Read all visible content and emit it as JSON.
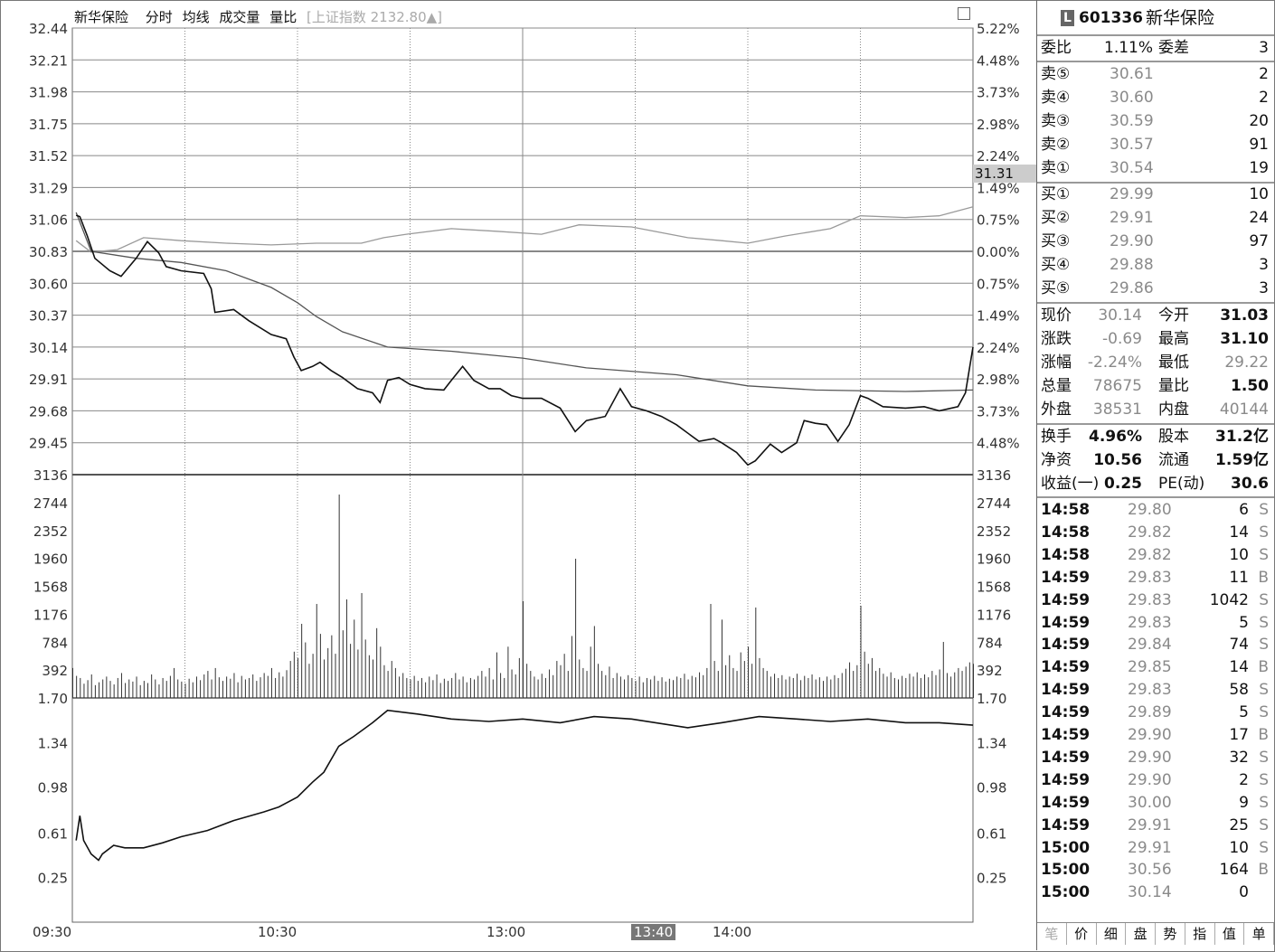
{
  "header": {
    "stock_name": "新华保险",
    "tabs": [
      "分时",
      "均线",
      "成交量",
      "量比"
    ],
    "index_info": "[上证指数 2132.80▲]"
  },
  "cursor": {
    "price": "31.31",
    "time": "13:40"
  },
  "time_labels": [
    "09:30",
    "10:30",
    "13:00",
    "14:00"
  ],
  "quote": {
    "code_badge": "L",
    "code": "601336",
    "name": "新华保险",
    "weibi_label": "委比",
    "weibi": "1.11%",
    "weicha_label": "委差",
    "weicha": "3",
    "sells": [
      {
        "label": "卖⑤",
        "price": "30.61",
        "vol": "2"
      },
      {
        "label": "卖④",
        "price": "30.60",
        "vol": "2"
      },
      {
        "label": "卖③",
        "price": "30.59",
        "vol": "20"
      },
      {
        "label": "卖②",
        "price": "30.57",
        "vol": "91"
      },
      {
        "label": "卖①",
        "price": "30.54",
        "vol": "19"
      }
    ],
    "buys": [
      {
        "label": "买①",
        "price": "29.99",
        "vol": "10"
      },
      {
        "label": "买②",
        "price": "29.91",
        "vol": "24"
      },
      {
        "label": "买③",
        "price": "29.90",
        "vol": "97"
      },
      {
        "label": "买④",
        "price": "29.88",
        "vol": "3"
      },
      {
        "label": "买⑤",
        "price": "29.86",
        "vol": "3"
      }
    ],
    "stats": [
      {
        "l1": "现价",
        "v1": "30.14",
        "l2": "今开",
        "v2": "31.03",
        "c1": "g",
        "c2": "b"
      },
      {
        "l1": "涨跌",
        "v1": "-0.69",
        "l2": "最高",
        "v2": "31.10",
        "c1": "g",
        "c2": "b"
      },
      {
        "l1": "涨幅",
        "v1": "-2.24%",
        "l2": "最低",
        "v2": "29.22",
        "c1": "g",
        "c2": "g"
      },
      {
        "l1": "总量",
        "v1": "78675",
        "l2": "量比",
        "v2": "1.50",
        "c1": "g",
        "c2": "b"
      },
      {
        "l1": "外盘",
        "v1": "38531",
        "l2": "内盘",
        "v2": "40144",
        "c1": "g",
        "c2": "g"
      }
    ],
    "fundamentals": [
      {
        "l1": "换手",
        "v1": "4.96%",
        "l2": "股本",
        "v2": "31.2亿"
      },
      {
        "l1": "净资",
        "v1": "10.56",
        "l2": "流通",
        "v2": "1.59亿"
      },
      {
        "l1": "收益(一)",
        "v1": "0.25",
        "l2": "PE(动)",
        "v2": "30.6"
      }
    ],
    "ticks": [
      [
        "14:58",
        "29.80",
        "6",
        "S"
      ],
      [
        "14:58",
        "29.82",
        "14",
        "S"
      ],
      [
        "14:58",
        "29.82",
        "10",
        "S"
      ],
      [
        "14:59",
        "29.83",
        "11",
        "B"
      ],
      [
        "14:59",
        "29.83",
        "1042",
        "S"
      ],
      [
        "14:59",
        "29.83",
        "5",
        "S"
      ],
      [
        "14:59",
        "29.84",
        "74",
        "S"
      ],
      [
        "14:59",
        "29.85",
        "14",
        "B"
      ],
      [
        "14:59",
        "29.83",
        "58",
        "S"
      ],
      [
        "14:59",
        "29.89",
        "5",
        "S"
      ],
      [
        "14:59",
        "29.90",
        "17",
        "B"
      ],
      [
        "14:59",
        "29.90",
        "32",
        "S"
      ],
      [
        "14:59",
        "29.90",
        "2",
        "S"
      ],
      [
        "14:59",
        "30.00",
        "9",
        "S"
      ],
      [
        "14:59",
        "29.91",
        "25",
        "S"
      ],
      [
        "15:00",
        "29.91",
        "10",
        "S"
      ],
      [
        "15:00",
        "30.56",
        "164",
        "B"
      ],
      [
        "15:00",
        "30.14",
        "0",
        ""
      ]
    ],
    "bottom_tabs": [
      "笔",
      "价",
      "细",
      "盘",
      "势",
      "指",
      "值",
      "单"
    ]
  },
  "chart_data": [
    {
      "type": "line",
      "panel": "price",
      "ylim": [
        29.22,
        32.44
      ],
      "prev_close": 30.83,
      "y_ticks": [
        "32.44",
        "32.21",
        "31.98",
        "31.75",
        "31.52",
        "31.29",
        "31.06",
        "30.83",
        "30.60",
        "30.37",
        "30.14",
        "29.91",
        "29.68",
        "29.45"
      ],
      "pct_ticks": [
        "5.22%",
        "4.48%",
        "3.73%",
        "2.98%",
        "2.24%",
        "1.49%",
        "0.75%",
        "0.00%",
        "0.75%",
        "1.49%",
        "2.24%",
        "2.98%",
        "3.73%",
        "4.48%"
      ],
      "x_unit": "minutes since 09:30 (trading minutes)",
      "xlim": [
        0,
        240
      ],
      "series": [
        {
          "key": "price",
          "x": [
            1,
            2,
            4,
            6,
            10,
            13,
            17,
            20,
            23,
            25,
            29,
            35,
            37,
            38,
            43,
            47,
            53,
            57,
            59,
            61,
            64,
            66,
            69,
            72,
            76,
            80,
            82,
            84,
            87,
            90,
            94,
            99,
            101,
            104,
            107,
            111,
            114,
            117,
            120,
            125,
            130,
            134,
            137,
            142,
            146,
            149,
            153,
            157,
            161,
            167,
            171,
            173,
            177,
            180,
            182,
            186,
            189,
            193,
            195,
            198,
            201,
            204,
            207,
            210,
            212,
            216,
            222,
            227,
            231,
            236,
            238,
            240
          ],
          "y": [
            31.09,
            31.08,
            30.94,
            30.78,
            30.69,
            30.65,
            30.78,
            30.9,
            30.82,
            30.72,
            30.69,
            30.67,
            30.56,
            30.39,
            30.41,
            30.33,
            30.23,
            30.2,
            30.07,
            29.97,
            30.0,
            30.03,
            29.97,
            29.92,
            29.84,
            29.81,
            29.74,
            29.9,
            29.92,
            29.87,
            29.84,
            29.83,
            29.9,
            30.0,
            29.9,
            29.84,
            29.84,
            29.79,
            29.77,
            29.77,
            29.7,
            29.53,
            29.61,
            29.64,
            29.84,
            29.71,
            29.68,
            29.64,
            29.58,
            29.46,
            29.48,
            29.45,
            29.38,
            29.29,
            29.32,
            29.44,
            29.38,
            29.45,
            29.61,
            29.59,
            29.58,
            29.46,
            29.58,
            29.79,
            29.77,
            29.71,
            29.7,
            29.71,
            29.68,
            29.71,
            29.81,
            30.14
          ]
        },
        {
          "key": "average",
          "x": [
            1,
            5,
            17,
            29,
            41,
            53,
            60,
            65,
            72,
            84,
            101,
            120,
            137,
            161,
            180,
            198,
            222,
            240
          ],
          "y": [
            31.11,
            30.83,
            30.78,
            30.75,
            30.69,
            30.57,
            30.46,
            30.36,
            30.25,
            30.14,
            30.11,
            30.06,
            29.99,
            29.94,
            29.86,
            29.83,
            29.82,
            29.83
          ]
        },
        {
          "key": "index_pct",
          "x": [
            1,
            5,
            12,
            19,
            29,
            41,
            53,
            65,
            77,
            83,
            89,
            101,
            113,
            125,
            135,
            149,
            164,
            173,
            180,
            190,
            202,
            210,
            222,
            231,
            240
          ],
          "y": [
            0.25,
            -0.02,
            0.04,
            0.32,
            0.25,
            0.19,
            0.15,
            0.19,
            0.19,
            0.32,
            0.4,
            0.53,
            0.47,
            0.4,
            0.62,
            0.57,
            0.32,
            0.25,
            0.19,
            0.36,
            0.53,
            0.83,
            0.79,
            0.83,
            1.04
          ]
        }
      ]
    },
    {
      "type": "bar",
      "panel": "volume",
      "ylim": [
        0,
        3136
      ],
      "y_ticks": [
        "3136",
        "2744",
        "2352",
        "1960",
        "1568",
        "1176",
        "784",
        "392"
      ],
      "values": [
        420,
        310,
        280,
        200,
        250,
        330,
        180,
        220,
        260,
        300,
        240,
        190,
        280,
        350,
        210,
        260,
        230,
        300,
        180,
        240,
        210,
        330,
        260,
        190,
        280,
        240,
        310,
        420,
        260,
        230,
        200,
        270,
        220,
        300,
        250,
        330,
        380,
        260,
        420,
        290,
        240,
        300,
        270,
        350,
        220,
        310,
        260,
        280,
        330,
        240,
        290,
        350,
        310,
        420,
        280,
        360,
        300,
        390,
        520,
        650,
        560,
        1041,
        780,
        480,
        620,
        1320,
        900,
        540,
        700,
        880,
        620,
        2857,
        950,
        1384,
        760,
        1100,
        680,
        1473,
        820,
        600,
        540,
        980,
        720,
        460,
        380,
        520,
        420,
        300,
        350,
        280,
        260,
        310,
        240,
        280,
        220,
        300,
        250,
        330,
        210,
        270,
        240,
        280,
        350,
        260,
        300,
        220,
        280,
        260,
        310,
        380,
        300,
        420,
        260,
        640,
        350,
        280,
        720,
        400,
        330,
        560,
        1358,
        480,
        380,
        300,
        260,
        340,
        280,
        400,
        320,
        520,
        460,
        620,
        380,
        870,
        1955,
        540,
        420,
        380,
        720,
        1010,
        480,
        380,
        320,
        440,
        280,
        350,
        300,
        260,
        320,
        280,
        240,
        300,
        220,
        280,
        260,
        310,
        240,
        290,
        230,
        270,
        250,
        300,
        280,
        340,
        260,
        310,
        290,
        360,
        320,
        420,
        1320,
        520,
        380,
        1100,
        460,
        600,
        420,
        380,
        640,
        520,
        720,
        480,
        1270,
        560,
        420,
        380,
        300,
        340,
        280,
        320,
        260,
        300,
        280,
        340,
        250,
        310,
        280,
        330,
        260,
        290,
        240,
        300,
        260,
        320,
        280,
        350,
        410,
        500,
        380,
        460,
        1295,
        650,
        480,
        560,
        380,
        420,
        340,
        300,
        360,
        280,
        260,
        310,
        280,
        340,
        300,
        360,
        280,
        330,
        290,
        380,
        320,
        400,
        787,
        350,
        300,
        360,
        420,
        380,
        440,
        500,
        480
      ]
    },
    {
      "type": "line",
      "panel": "volume_ratio",
      "ylim": [
        -0.11,
        1.7
      ],
      "y_ticks": [
        "1.70",
        "1.34",
        "0.98",
        "0.61",
        "0.25"
      ],
      "x": [
        1,
        2,
        3,
        5,
        7,
        8,
        11,
        14,
        19,
        24,
        29,
        36,
        43,
        51,
        55,
        60,
        64,
        67,
        71,
        75,
        80,
        84,
        92,
        101,
        111,
        120,
        130,
        139,
        149,
        164,
        173,
        183,
        193,
        202,
        212,
        222,
        231,
        240
      ],
      "y": [
        0.55,
        0.75,
        0.55,
        0.44,
        0.39,
        0.44,
        0.51,
        0.49,
        0.49,
        0.53,
        0.58,
        0.63,
        0.71,
        0.78,
        0.82,
        0.9,
        1.02,
        1.1,
        1.31,
        1.39,
        1.5,
        1.6,
        1.57,
        1.53,
        1.51,
        1.53,
        1.5,
        1.55,
        1.53,
        1.46,
        1.5,
        1.55,
        1.53,
        1.51,
        1.53,
        1.5,
        1.5,
        1.48
      ]
    }
  ],
  "colors": {
    "price": "#111111",
    "average": "#555555",
    "index": "#9a9a9a",
    "grid": "#888888",
    "volume": "#333333"
  }
}
